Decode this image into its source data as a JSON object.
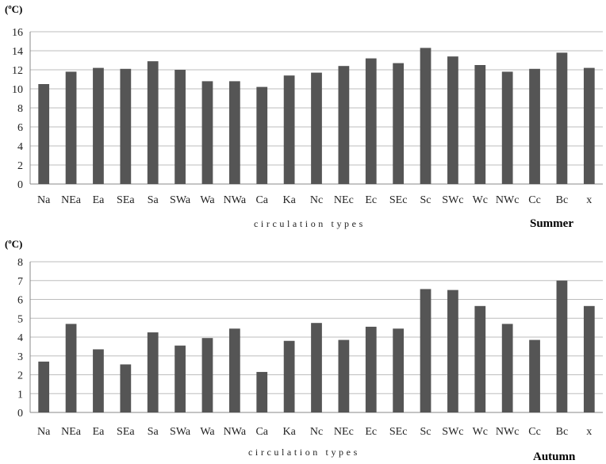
{
  "chart_data": [
    {
      "type": "bar",
      "unit_label": "(ºC)",
      "xlabel": "circulation types",
      "season_label": "Summer",
      "categories": [
        "Na",
        "NEa",
        "Ea",
        "SEa",
        "Sa",
        "SWa",
        "Wa",
        "NWa",
        "Ca",
        "Ka",
        "Nc",
        "NEc",
        "Ec",
        "SEc",
        "Sc",
        "SWc",
        "Wc",
        "NWc",
        "Cc",
        "Bc",
        "x"
      ],
      "values": [
        10.5,
        11.8,
        12.2,
        12.1,
        12.9,
        12.0,
        10.8,
        10.8,
        10.2,
        11.4,
        11.7,
        12.4,
        13.2,
        12.7,
        14.3,
        13.4,
        12.5,
        11.8,
        12.1,
        13.8,
        12.2
      ],
      "ylim": [
        0,
        16
      ],
      "yticks": [
        0,
        2,
        4,
        6,
        8,
        10,
        12,
        14,
        16
      ],
      "grid": true,
      "bar_color": "#555555"
    },
    {
      "type": "bar",
      "unit_label": "(ºC)",
      "xlabel": "circulation types",
      "season_label": "Autumn",
      "categories": [
        "Na",
        "NEa",
        "Ea",
        "SEa",
        "Sa",
        "SWa",
        "Wa",
        "NWa",
        "Ca",
        "Ka",
        "Nc",
        "NEc",
        "Ec",
        "SEc",
        "Sc",
        "SWc",
        "Wc",
        "NWc",
        "Cc",
        "Bc",
        "x"
      ],
      "values": [
        2.7,
        4.7,
        3.35,
        2.55,
        4.25,
        3.55,
        3.95,
        4.45,
        2.15,
        3.8,
        4.75,
        3.85,
        4.55,
        4.45,
        6.55,
        6.5,
        5.65,
        4.7,
        3.85,
        7.0,
        5.65
      ],
      "ylim": [
        0,
        8
      ],
      "yticks": [
        0,
        1,
        2,
        3,
        4,
        5,
        6,
        7,
        8
      ],
      "grid": true,
      "bar_color": "#555555"
    }
  ]
}
